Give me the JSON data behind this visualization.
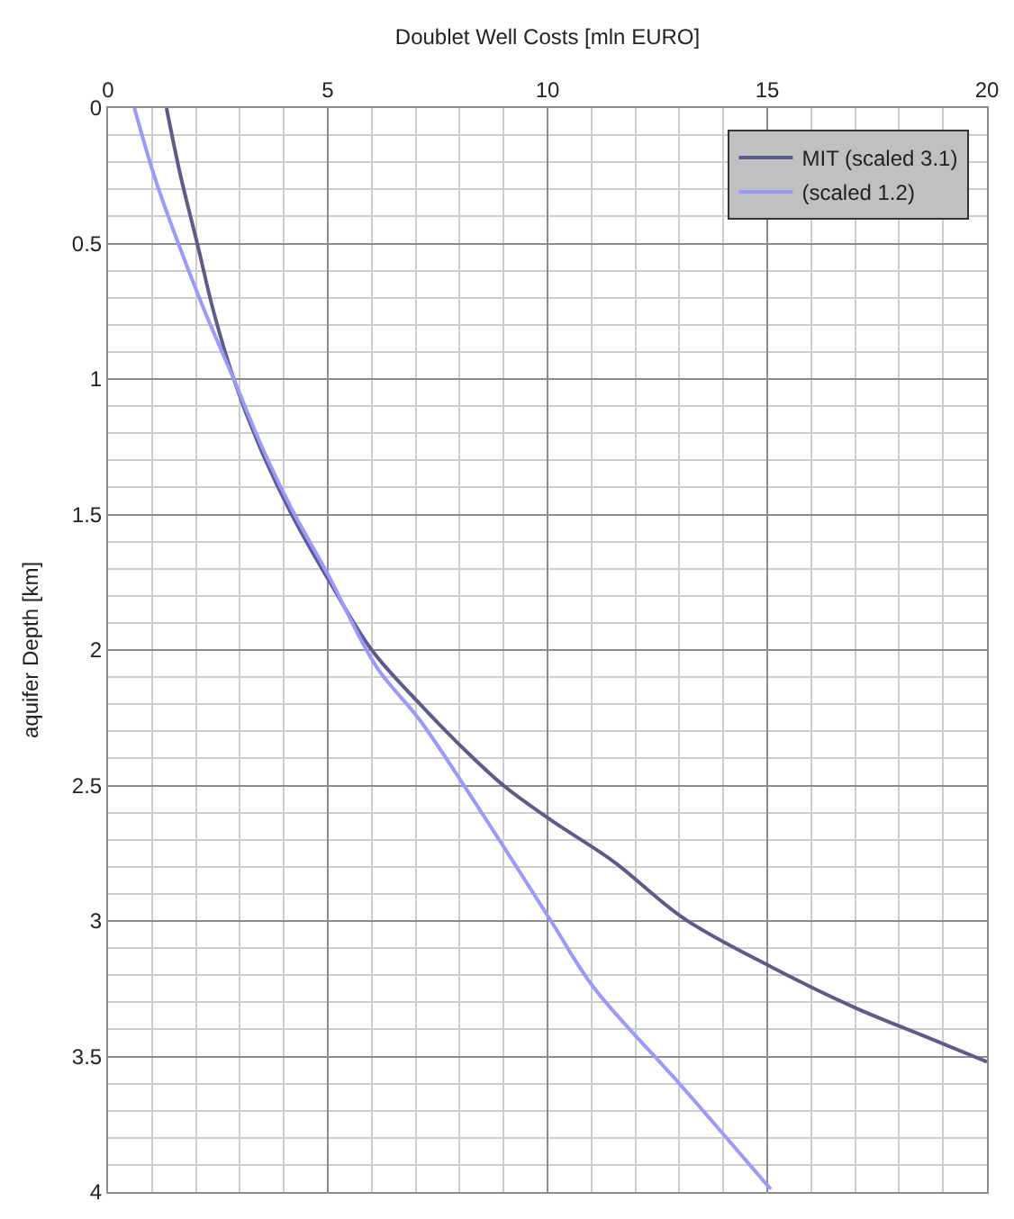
{
  "chart_data": {
    "type": "line",
    "xlabel": "Doublet Well Costs [mln EURO]",
    "ylabel": "aquifer Depth [km]",
    "xlim": [
      0,
      20
    ],
    "xticks": [
      0,
      5,
      10,
      15,
      20
    ],
    "ylim": [
      4,
      0
    ],
    "yticks": [
      0,
      0.5,
      1,
      1.5,
      2,
      2.5,
      3,
      3.5,
      4
    ],
    "grid": true,
    "legend": "top right",
    "marker": "none",
    "line_style": "solid",
    "series": [
      {
        "name": "MIT (scaled 3.1)",
        "color": "#5c5c8a",
        "x": [
          1.33,
          1.65,
          2.03,
          2.4,
          2.86,
          3.45,
          4.18,
          5.05,
          6.0,
          7.1,
          8.0,
          9.0,
          10.1,
          11.5,
          13.1,
          15.1,
          17.0,
          18.5,
          20
        ],
        "values": [
          0,
          0.25,
          0.5,
          0.75,
          1.0,
          1.25,
          1.5,
          1.75,
          2.0,
          2.2,
          2.35,
          2.5,
          2.63,
          2.78,
          2.99,
          3.17,
          3.32,
          3.42,
          3.52
        ]
      },
      {
        "name": "(scaled 1.2)",
        "color": "#9999ff",
        "x": [
          0.6,
          1.05,
          1.6,
          2.2,
          2.86,
          3.5,
          4.18,
          5.0,
          6.1,
          7.1,
          8.5,
          10.08,
          11.05,
          13.0,
          15.08
        ],
        "values": [
          0,
          0.25,
          0.5,
          0.75,
          1.0,
          1.25,
          1.48,
          1.72,
          2.06,
          2.26,
          2.6,
          3.0,
          3.245,
          3.6,
          3.99
        ]
      }
    ]
  }
}
